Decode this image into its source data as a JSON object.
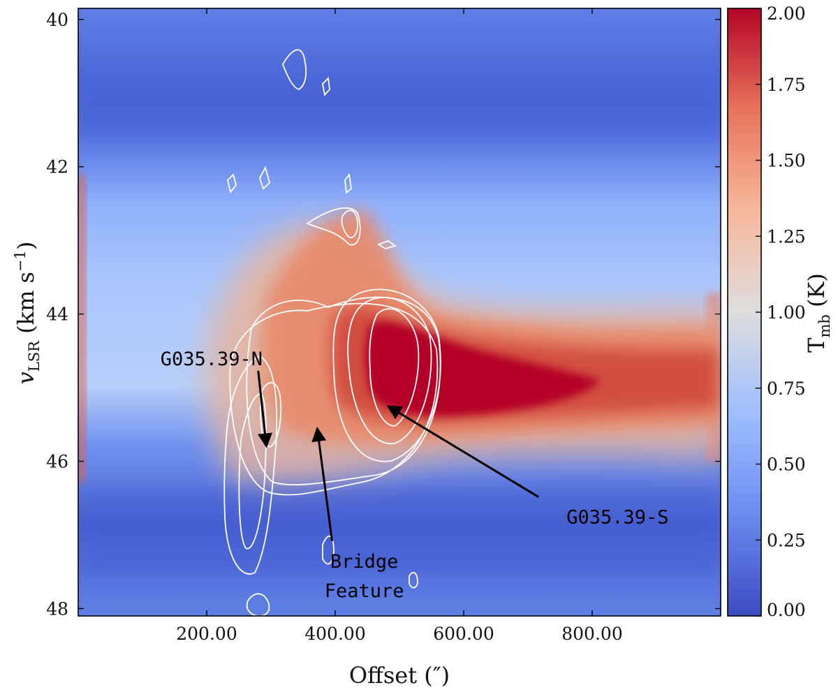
{
  "chart_data": {
    "type": "heatmap",
    "title": "",
    "xlabel": "Offset (″)",
    "ylabel": {
      "main": "v",
      "sub": "LSR",
      "units": " (km s",
      "sup": "−1",
      "close": ")"
    },
    "xlim": [
      0,
      1000
    ],
    "ylim": [
      48.1,
      39.85
    ],
    "x_ticks": [
      200,
      400,
      600,
      800
    ],
    "x_tick_labels": [
      "200.00",
      "400.00",
      "600.00",
      "800.00"
    ],
    "y_ticks": [
      40,
      42,
      44,
      46,
      48
    ],
    "y_tick_labels": [
      "40",
      "42",
      "44",
      "46",
      "48"
    ],
    "colorbar": {
      "label": {
        "main": "T",
        "sub": "mb",
        "units": " (K)"
      },
      "range": [
        0,
        2
      ],
      "ticks": [
        0,
        0.25,
        0.5,
        0.75,
        1.0,
        1.25,
        1.5,
        1.75,
        2.0
      ],
      "tick_labels": [
        "0.00",
        "0.25",
        "0.50",
        "0.75",
        "1.00",
        "1.25",
        "1.50",
        "1.75",
        "2.00"
      ],
      "colormap": "coolwarm",
      "stops": [
        "#3b4cc0",
        "#6a8bef",
        "#9ebeff",
        "#dddddd",
        "#f7b89c",
        "#e7745b",
        "#b40426"
      ]
    },
    "emission_ridge": [
      {
        "x": 320,
        "v": 44.3,
        "tmb": 1.15
      },
      {
        "x": 440,
        "v": 43.9,
        "tmb": 1.45
      },
      {
        "x": 520,
        "v": 44.8,
        "tmb": 1.9
      },
      {
        "x": 650,
        "v": 45.0,
        "tmb": 2.0
      },
      {
        "x": 800,
        "v": 45.2,
        "tmb": 1.6
      },
      {
        "x": 960,
        "v": 45.0,
        "tmb": 1.6
      }
    ],
    "contour_color": "#ffffff",
    "annotations": [
      {
        "text": "G035.39-N",
        "text_x": 128,
        "text_v": 44.6,
        "point_x": 293,
        "point_v": 45.8
      },
      {
        "text": "Bridge",
        "text_x": 380,
        "text_v": 47.35,
        "point_x": 372,
        "point_v": 45.55
      },
      {
        "text": "Feature",
        "text_x": 380,
        "text_v": 47.75,
        "point_x": null,
        "point_v": null
      },
      {
        "text": "G035.39-S",
        "text_x": 760,
        "text_v": 46.75,
        "point_x": 482,
        "point_v": 45.25
      }
    ]
  }
}
